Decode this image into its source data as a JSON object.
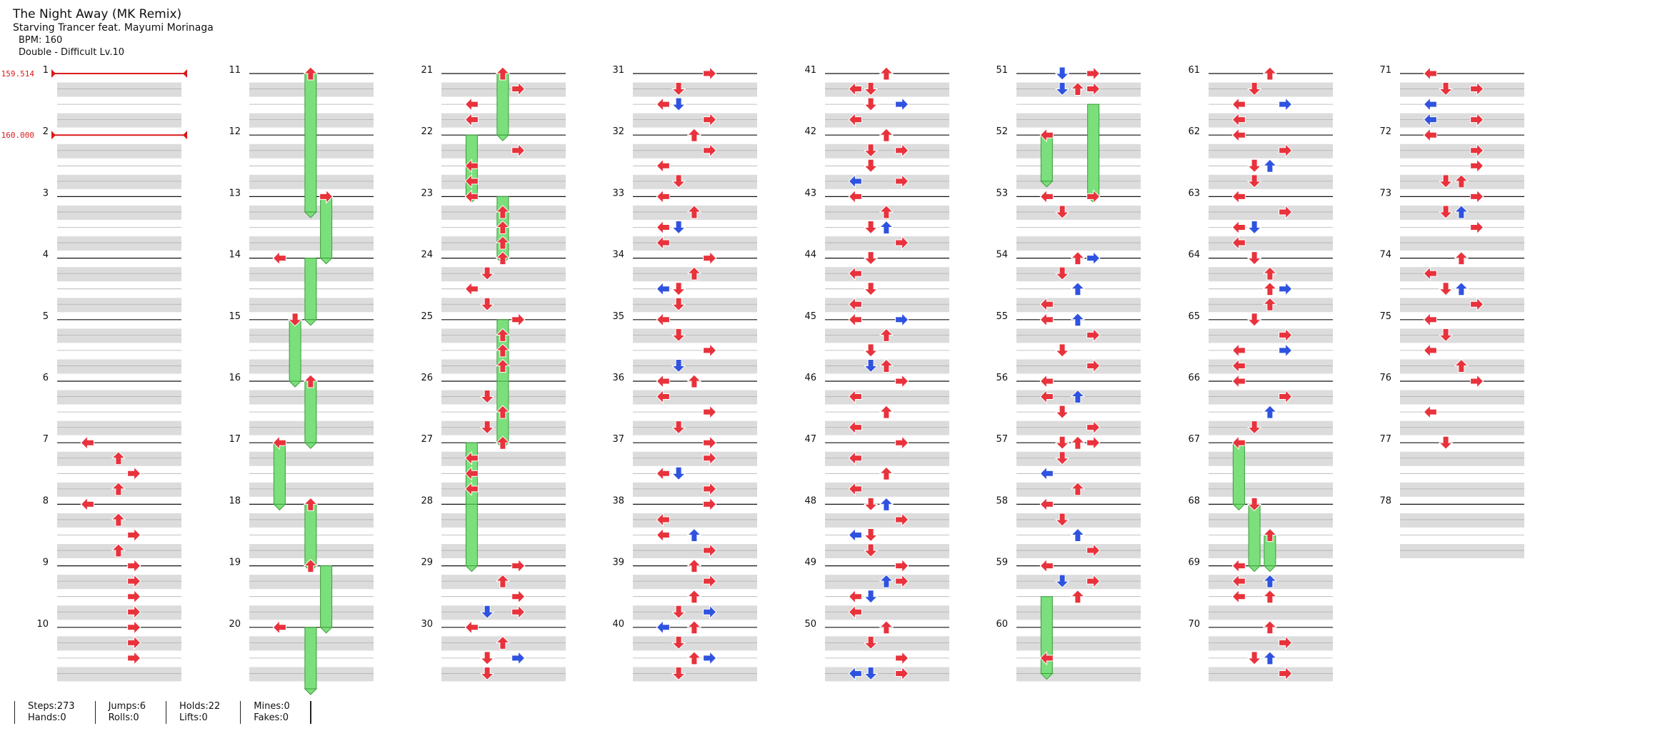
{
  "song": {
    "title": "The Night Away (MK Remix)",
    "artist": "Starving Trancer feat. Mayumi Morinaga",
    "bpm_text": "BPM: 160",
    "difficulty_text": "Double - Difficult  Lv.10"
  },
  "bpm_changes": [
    {
      "label": "159.514",
      "measure": 1
    },
    {
      "label": "160.000",
      "measure": 2
    }
  ],
  "measures": [
    "1",
    "2",
    "3",
    "4",
    "5",
    "6",
    "7",
    "8",
    "9",
    "10",
    "11",
    "12",
    "13",
    "14",
    "15",
    "16",
    "17",
    "18",
    "19",
    "20",
    "21",
    "22",
    "23",
    "24",
    "25",
    "26",
    "27",
    "28",
    "29",
    "30",
    "31",
    "32",
    "33",
    "34",
    "35",
    "36",
    "37",
    "38",
    "39",
    "40",
    "41",
    "42",
    "43",
    "44",
    "45",
    "46",
    "47",
    "48",
    "49",
    "50",
    "51",
    "52",
    "53",
    "54",
    "55",
    "56",
    "57",
    "58",
    "59",
    "60",
    "61",
    "62",
    "63",
    "64",
    "65",
    "66",
    "67",
    "68",
    "69",
    "70",
    "71",
    "72",
    "73",
    "74",
    "75",
    "76",
    "77",
    "78"
  ],
  "lanes": [
    "left-p1",
    "down-p1",
    "up-p1",
    "right-p1",
    "left-p2",
    "down-p2",
    "up-p2",
    "right-p2"
  ],
  "colors": {
    "quarter": "#e8323c",
    "eighth": "#2f53e0",
    "hold": "#7be07b",
    "bpm": "#d91b1b",
    "band": "#dcdcdc",
    "line": "#111111"
  },
  "notes": [
    [
      7,
      0,
      "L",
      "q"
    ],
    [
      7,
      0.25,
      "U",
      "q"
    ],
    [
      7,
      0.5,
      "R",
      "q"
    ],
    [
      7,
      0.75,
      "U",
      "q"
    ],
    [
      8,
      0,
      "L",
      "q"
    ],
    [
      8,
      0.25,
      "U",
      "q"
    ],
    [
      8,
      0.5,
      "R",
      "q"
    ],
    [
      8,
      0.75,
      "U",
      "q"
    ],
    [
      9,
      0,
      "R",
      "q"
    ],
    [
      9,
      0.25,
      "R",
      "q"
    ],
    [
      9,
      0.5,
      "R",
      "q"
    ],
    [
      9,
      0.75,
      "R",
      "q"
    ],
    [
      10,
      0,
      "R",
      "q"
    ],
    [
      10,
      0.25,
      "R",
      "q"
    ],
    [
      10,
      0.5,
      "R",
      "q"
    ],
    [
      11,
      0,
      "U",
      "q"
    ],
    [
      13,
      0,
      "R",
      "q"
    ],
    [
      14,
      0,
      "L",
      "q"
    ],
    [
      15,
      0,
      "D",
      "q"
    ],
    [
      16,
      0,
      "U",
      "q"
    ],
    [
      17,
      0,
      "L",
      "q"
    ],
    [
      18,
      0,
      "U",
      "q"
    ],
    [
      19,
      0,
      "U",
      "q"
    ],
    [
      20,
      0,
      "L",
      "q"
    ],
    [
      21,
      0,
      "U",
      "q"
    ],
    [
      21,
      0.25,
      "R",
      "q"
    ],
    [
      21,
      0.5,
      "L",
      "q"
    ],
    [
      21,
      0.75,
      "L",
      "q"
    ],
    [
      22,
      0.25,
      "R",
      "q"
    ],
    [
      22,
      0.5,
      "L",
      "q"
    ],
    [
      22,
      0.75,
      "L",
      "q"
    ],
    [
      23,
      0,
      "L",
      "q"
    ],
    [
      23,
      0.25,
      "U",
      "q"
    ],
    [
      23,
      0.5,
      "U",
      "q"
    ],
    [
      23,
      0.75,
      "U",
      "q"
    ],
    [
      24,
      0,
      "U",
      "q"
    ],
    [
      24,
      0.25,
      "D",
      "q"
    ],
    [
      24,
      0.5,
      "L",
      "q"
    ],
    [
      24,
      0.75,
      "D",
      "q"
    ],
    [
      25,
      0,
      "R",
      "q"
    ],
    [
      25,
      0.25,
      "U",
      "q"
    ],
    [
      25,
      0.5,
      "U",
      "q"
    ],
    [
      25,
      0.75,
      "U",
      "q"
    ],
    [
      26,
      0.25,
      "D",
      "q"
    ],
    [
      26,
      0.5,
      "U",
      "q"
    ],
    [
      26,
      0.75,
      "D",
      "q"
    ],
    [
      27,
      0,
      "U",
      "q"
    ],
    [
      27,
      0.25,
      "L",
      "q"
    ],
    [
      27,
      0.5,
      "L",
      "q"
    ],
    [
      27,
      0.75,
      "L",
      "q"
    ],
    [
      29,
      0,
      "R",
      "q"
    ],
    [
      29,
      0.25,
      "U",
      "q"
    ],
    [
      29,
      0.5,
      "R",
      "q"
    ],
    [
      29,
      0.75,
      "D",
      "e"
    ],
    [
      29,
      0.75,
      "R",
      "q"
    ],
    [
      30,
      0,
      "L",
      "q"
    ],
    [
      30,
      0.25,
      "U",
      "q"
    ],
    [
      30,
      0.5,
      "D",
      "q"
    ],
    [
      30,
      0.5,
      "R",
      "e"
    ],
    [
      30,
      0.75,
      "D",
      "q"
    ],
    [
      31,
      0,
      "R",
      "q"
    ],
    [
      31,
      0.25,
      "D",
      "q"
    ],
    [
      31,
      0.5,
      "L",
      "q"
    ],
    [
      31,
      0.5,
      "D",
      "e"
    ],
    [
      31,
      0.75,
      "R",
      "q"
    ],
    [
      32,
      0,
      "U",
      "q"
    ],
    [
      32,
      0.25,
      "R",
      "q"
    ],
    [
      32,
      0.5,
      "L",
      "q"
    ],
    [
      32,
      0.75,
      "D",
      "q"
    ],
    [
      33,
      0,
      "L",
      "q"
    ],
    [
      33,
      0.25,
      "U",
      "q"
    ],
    [
      33,
      0.5,
      "L",
      "q"
    ],
    [
      33,
      0.5,
      "D",
      "e"
    ],
    [
      33,
      0.75,
      "L",
      "q"
    ],
    [
      34,
      0,
      "R",
      "q"
    ],
    [
      34,
      0.25,
      "U",
      "q"
    ],
    [
      34,
      0.5,
      "L",
      "e"
    ],
    [
      34,
      0.5,
      "D",
      "q"
    ],
    [
      34,
      0.75,
      "D",
      "q"
    ],
    [
      35,
      0,
      "L",
      "q"
    ],
    [
      35,
      0.25,
      "D",
      "q"
    ],
    [
      35,
      0.5,
      "R",
      "q"
    ],
    [
      35,
      0.75,
      "D",
      "e"
    ],
    [
      36,
      0,
      "L",
      "q"
    ],
    [
      36,
      0,
      "U",
      "q"
    ],
    [
      36,
      0.25,
      "L",
      "q"
    ],
    [
      36,
      0.5,
      "R",
      "q"
    ],
    [
      36,
      0.75,
      "D",
      "q"
    ],
    [
      37,
      0,
      "R",
      "q"
    ],
    [
      37,
      0.25,
      "R",
      "q"
    ],
    [
      37,
      0.5,
      "L",
      "q"
    ],
    [
      37,
      0.5,
      "D",
      "e"
    ],
    [
      37,
      0.75,
      "R",
      "q"
    ],
    [
      38,
      0,
      "R",
      "q"
    ],
    [
      38,
      0.25,
      "L",
      "q"
    ],
    [
      38,
      0.5,
      "L",
      "q"
    ],
    [
      38,
      0.5,
      "U",
      "e"
    ],
    [
      38,
      0.75,
      "R",
      "q"
    ],
    [
      39,
      0,
      "U",
      "q"
    ],
    [
      39,
      0.25,
      "R",
      "q"
    ],
    [
      39,
      0.5,
      "U",
      "q"
    ],
    [
      39,
      0.75,
      "D",
      "q"
    ],
    [
      39,
      0.75,
      "R",
      "e"
    ],
    [
      40,
      0,
      "L",
      "e"
    ],
    [
      40,
      0,
      "U",
      "q"
    ],
    [
      40,
      0.25,
      "D",
      "q"
    ],
    [
      40,
      0.5,
      "U",
      "q"
    ],
    [
      40,
      0.5,
      "R",
      "e"
    ],
    [
      40,
      0.75,
      "D",
      "q"
    ],
    [
      41,
      0,
      "U",
      "q"
    ],
    [
      41,
      0.25,
      "L",
      "q"
    ],
    [
      41,
      0.25,
      "D",
      "q"
    ],
    [
      41,
      0.5,
      "D",
      "q"
    ],
    [
      41,
      0.5,
      "R",
      "e"
    ],
    [
      41,
      0.75,
      "L",
      "q"
    ],
    [
      42,
      0,
      "U",
      "q"
    ],
    [
      42,
      0.25,
      "D",
      "q"
    ],
    [
      42,
      0.25,
      "R",
      "q"
    ],
    [
      42,
      0.5,
      "D",
      "q"
    ],
    [
      42,
      0.75,
      "R",
      "q"
    ],
    [
      42,
      0.75,
      "L",
      "e"
    ],
    [
      43,
      0,
      "L",
      "q"
    ],
    [
      43,
      0.25,
      "U",
      "q"
    ],
    [
      43,
      0.5,
      "D",
      "q"
    ],
    [
      43,
      0.5,
      "U",
      "e"
    ],
    [
      43,
      0.75,
      "R",
      "q"
    ],
    [
      44,
      0,
      "D",
      "q"
    ],
    [
      44,
      0.25,
      "L",
      "q"
    ],
    [
      44,
      0.5,
      "D",
      "q"
    ],
    [
      44,
      0.75,
      "L",
      "q"
    ],
    [
      45,
      0,
      "L",
      "q"
    ],
    [
      45,
      0,
      "R",
      "e"
    ],
    [
      45,
      0.25,
      "U",
      "q"
    ],
    [
      45,
      0.5,
      "D",
      "q"
    ],
    [
      45,
      0.75,
      "U",
      "q"
    ],
    [
      45,
      0.75,
      "D",
      "e"
    ],
    [
      46,
      0,
      "R",
      "q"
    ],
    [
      46,
      0.25,
      "L",
      "q"
    ],
    [
      46,
      0.5,
      "U",
      "q"
    ],
    [
      46,
      0.75,
      "L",
      "q"
    ],
    [
      47,
      0,
      "R",
      "q"
    ],
    [
      47,
      0.25,
      "L",
      "q"
    ],
    [
      47,
      0.5,
      "U",
      "q"
    ],
    [
      47,
      0.75,
      "L",
      "q"
    ],
    [
      48,
      0,
      "D",
      "q"
    ],
    [
      48,
      0,
      "U",
      "e"
    ],
    [
      48,
      0.25,
      "R",
      "q"
    ],
    [
      48,
      0.5,
      "L",
      "e"
    ],
    [
      48,
      0.5,
      "D",
      "q"
    ],
    [
      48,
      0.75,
      "D",
      "q"
    ],
    [
      49,
      0,
      "R",
      "q"
    ],
    [
      49,
      0.25,
      "U",
      "e"
    ],
    [
      49,
      0.25,
      "R",
      "q"
    ],
    [
      49,
      0.5,
      "L",
      "q"
    ],
    [
      49,
      0.5,
      "D",
      "e"
    ],
    [
      49,
      0.75,
      "L",
      "q"
    ],
    [
      50,
      0,
      "U",
      "q"
    ],
    [
      50,
      0.25,
      "D",
      "q"
    ],
    [
      50,
      0.5,
      "R",
      "q"
    ],
    [
      50,
      0.75,
      "L",
      "e"
    ],
    [
      50,
      0.75,
      "R",
      "q"
    ],
    [
      50,
      0.75,
      "D",
      "e"
    ],
    [
      51,
      0,
      "D",
      "e"
    ],
    [
      51,
      0,
      "R",
      "q"
    ],
    [
      51,
      0.25,
      "D",
      "e"
    ],
    [
      51,
      0.25,
      "U",
      "q"
    ],
    [
      51,
      0.25,
      "R",
      "q"
    ],
    [
      52,
      0,
      "L",
      "q"
    ],
    [
      53,
      0,
      "L",
      "q"
    ],
    [
      53,
      0,
      "R",
      "q"
    ],
    [
      53,
      0.25,
      "D",
      "q"
    ],
    [
      54,
      0,
      "U",
      "q"
    ],
    [
      54,
      0,
      "R",
      "e"
    ],
    [
      54,
      0.25,
      "D",
      "q"
    ],
    [
      54,
      0.5,
      "U",
      "e"
    ],
    [
      54,
      0.75,
      "L",
      "q"
    ],
    [
      55,
      0,
      "L",
      "q"
    ],
    [
      55,
      0,
      "U",
      "e"
    ],
    [
      55,
      0.25,
      "R",
      "q"
    ],
    [
      55,
      0.5,
      "D",
      "q"
    ],
    [
      55,
      0.75,
      "R",
      "q"
    ],
    [
      56,
      0,
      "L",
      "q"
    ],
    [
      56,
      0.25,
      "L",
      "q"
    ],
    [
      56,
      0.25,
      "U",
      "e"
    ],
    [
      56,
      0.5,
      "D",
      "q"
    ],
    [
      56,
      0.75,
      "R",
      "q"
    ],
    [
      57,
      0,
      "D",
      "q"
    ],
    [
      57,
      0,
      "U",
      "q"
    ],
    [
      57,
      0,
      "R",
      "q"
    ],
    [
      57,
      0.25,
      "D",
      "q"
    ],
    [
      57,
      0.5,
      "L",
      "e"
    ],
    [
      57,
      0.75,
      "U",
      "q"
    ],
    [
      58,
      0,
      "L",
      "q"
    ],
    [
      58,
      0.25,
      "D",
      "q"
    ],
    [
      58,
      0.5,
      "U",
      "e"
    ],
    [
      58,
      0.75,
      "R",
      "q"
    ],
    [
      59,
      0,
      "L",
      "q"
    ],
    [
      59,
      0.25,
      "D",
      "e"
    ],
    [
      59,
      0.25,
      "R",
      "q"
    ],
    [
      59,
      0.5,
      "U",
      "q"
    ],
    [
      60,
      0.5,
      "L",
      "q"
    ],
    [
      61,
      0,
      "U",
      "q"
    ],
    [
      61,
      0.25,
      "D",
      "q"
    ],
    [
      61,
      0.5,
      "R",
      "e"
    ],
    [
      61,
      0.5,
      "L",
      "q"
    ],
    [
      61,
      0.75,
      "L",
      "q"
    ],
    [
      62,
      0,
      "L",
      "q"
    ],
    [
      62,
      0.25,
      "R",
      "q"
    ],
    [
      62,
      0.5,
      "D",
      "q"
    ],
    [
      62,
      0.5,
      "U",
      "e"
    ],
    [
      62,
      0.75,
      "D",
      "q"
    ],
    [
      63,
      0,
      "L",
      "q"
    ],
    [
      63,
      0.25,
      "R",
      "q"
    ],
    [
      63,
      0.5,
      "L",
      "q"
    ],
    [
      63,
      0.5,
      "D",
      "e"
    ],
    [
      63,
      0.75,
      "L",
      "q"
    ],
    [
      64,
      0,
      "D",
      "q"
    ],
    [
      64,
      0.25,
      "U",
      "q"
    ],
    [
      64,
      0.5,
      "U",
      "q"
    ],
    [
      64,
      0.5,
      "R",
      "e"
    ],
    [
      64,
      0.75,
      "U",
      "q"
    ],
    [
      65,
      0,
      "D",
      "q"
    ],
    [
      65,
      0.25,
      "R",
      "q"
    ],
    [
      65,
      0.5,
      "L",
      "q"
    ],
    [
      65,
      0.5,
      "R",
      "e"
    ],
    [
      65,
      0.75,
      "L",
      "q"
    ],
    [
      66,
      0,
      "L",
      "q"
    ],
    [
      66,
      0.25,
      "R",
      "q"
    ],
    [
      66,
      0.5,
      "U",
      "q"
    ],
    [
      66,
      0.5,
      "U",
      "e"
    ],
    [
      66,
      0.75,
      "D",
      "q"
    ],
    [
      67,
      0,
      "L",
      "q"
    ],
    [
      68,
      0,
      "D",
      "q"
    ],
    [
      68,
      0.5,
      "U",
      "q"
    ],
    [
      69,
      0,
      "L",
      "q"
    ],
    [
      69,
      0.25,
      "L",
      "q"
    ],
    [
      69,
      0.25,
      "U",
      "e"
    ],
    [
      69,
      0.5,
      "L",
      "q"
    ],
    [
      69,
      0.5,
      "U",
      "q"
    ],
    [
      70,
      0,
      "U",
      "q"
    ],
    [
      70,
      0.25,
      "R",
      "q"
    ],
    [
      70,
      0.5,
      "D",
      "q"
    ],
    [
      70,
      0.5,
      "U",
      "e"
    ],
    [
      70,
      0.75,
      "R",
      "q"
    ],
    [
      71,
      0,
      "L",
      "q"
    ],
    [
      71,
      0.25,
      "R",
      "q"
    ],
    [
      71,
      0.25,
      "D",
      "q"
    ],
    [
      71,
      0.5,
      "L",
      "e"
    ],
    [
      71,
      0.75,
      "L",
      "e"
    ],
    [
      71,
      0.75,
      "R",
      "q"
    ],
    [
      71,
      0.75,
      "R",
      "q"
    ],
    [
      72,
      0,
      "L",
      "q"
    ],
    [
      72,
      0.25,
      "R",
      "q"
    ],
    [
      72,
      0.5,
      "R",
      "q"
    ],
    [
      72,
      0.75,
      "D",
      "q"
    ],
    [
      72,
      0.75,
      "U",
      "q"
    ],
    [
      73,
      0,
      "R",
      "q"
    ],
    [
      73,
      0.25,
      "D",
      "q"
    ],
    [
      73,
      0.25,
      "U",
      "e"
    ],
    [
      73,
      0.5,
      "R",
      "q"
    ],
    [
      74,
      0,
      "U",
      "q"
    ],
    [
      74,
      0.25,
      "L",
      "q"
    ],
    [
      74,
      0.5,
      "D",
      "q"
    ],
    [
      74,
      0.5,
      "U",
      "e"
    ],
    [
      74,
      0.75,
      "R",
      "q"
    ],
    [
      75,
      0,
      "L",
      "q"
    ],
    [
      75,
      0.25,
      "D",
      "q"
    ],
    [
      75,
      0.5,
      "L",
      "q"
    ],
    [
      75,
      0.75,
      "U",
      "q"
    ],
    [
      76,
      0,
      "R",
      "q"
    ],
    [
      76,
      0.5,
      "L",
      "q"
    ],
    [
      77,
      0,
      "D",
      "q"
    ]
  ],
  "holds": [
    [
      11,
      0,
      13,
      0.25,
      "U"
    ],
    [
      13,
      0,
      14,
      0,
      "R"
    ],
    [
      14,
      0,
      15,
      0,
      "U"
    ],
    [
      15,
      0,
      16,
      0,
      "D"
    ],
    [
      16,
      0,
      17,
      0,
      "U"
    ],
    [
      17,
      0,
      18,
      0,
      "L"
    ],
    [
      18,
      0,
      19,
      0,
      "U"
    ],
    [
      19,
      0,
      20,
      0,
      "R"
    ],
    [
      20,
      0,
      21,
      0,
      "U"
    ],
    [
      21,
      0,
      22,
      0,
      "U"
    ],
    [
      22,
      0,
      23,
      0,
      "L"
    ],
    [
      23,
      0,
      24,
      0,
      "U"
    ],
    [
      25,
      0,
      26,
      0,
      "U"
    ],
    [
      26,
      0,
      27,
      0,
      "U"
    ],
    [
      27,
      0,
      28,
      0,
      "L"
    ],
    [
      28,
      0,
      29,
      0,
      "L"
    ],
    [
      51,
      0.5,
      53,
      0,
      "R"
    ],
    [
      52,
      0,
      52,
      0.75,
      "L"
    ],
    [
      59,
      0.5,
      60,
      0.75,
      "L"
    ],
    [
      67,
      0,
      68,
      0,
      "L"
    ],
    [
      68,
      0,
      69,
      0,
      "D"
    ],
    [
      68,
      0.5,
      69,
      0,
      "U"
    ]
  ],
  "stats": [
    [
      "Steps:273",
      "Hands:0"
    ],
    [
      "Jumps:6",
      "Rolls:0"
    ],
    [
      "Holds:22",
      "Lifts:0"
    ],
    [
      "Mines:0",
      "Fakes:0"
    ]
  ]
}
